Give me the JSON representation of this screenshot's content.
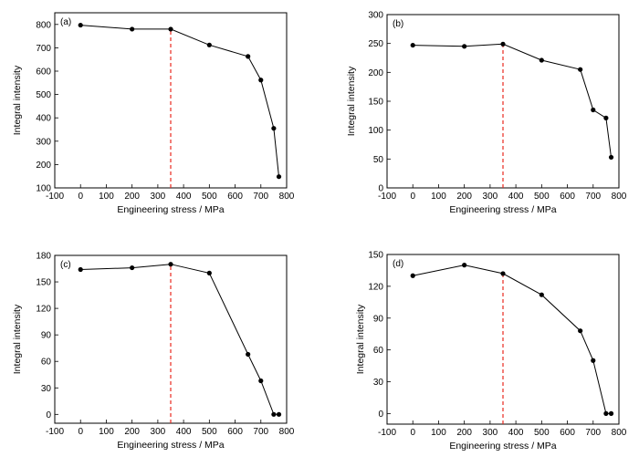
{
  "chart_data": [
    {
      "type": "line",
      "panel_label": "(a)",
      "xlabel": "Engineering stress / MPa",
      "ylabel": "Integral intensity",
      "xlim": [
        -100,
        800
      ],
      "ylim": [
        100,
        850
      ],
      "xticks": [
        -100,
        0,
        100,
        200,
        300,
        400,
        500,
        600,
        700,
        800
      ],
      "yticks": [
        100,
        200,
        300,
        400,
        500,
        600,
        700,
        800
      ],
      "x": [
        0,
        200,
        350,
        500,
        650,
        700,
        750,
        770
      ],
      "y": [
        797,
        780,
        780,
        712,
        663,
        562,
        355,
        148
      ],
      "reference_x": 350,
      "grid": false
    },
    {
      "type": "line",
      "panel_label": "(b)",
      "xlabel": "Engineering stress / MPa",
      "ylabel": "Integral intensity",
      "xlim": [
        -100,
        800
      ],
      "ylim": [
        0,
        300
      ],
      "xticks": [
        -100,
        0,
        100,
        200,
        300,
        400,
        500,
        600,
        700,
        800
      ],
      "yticks": [
        0,
        50,
        100,
        150,
        200,
        250,
        300
      ],
      "x": [
        0,
        200,
        350,
        500,
        650,
        700,
        750,
        770
      ],
      "y": [
        247,
        245,
        249,
        221,
        205,
        135,
        121,
        53
      ],
      "reference_x": 350,
      "grid": false
    },
    {
      "type": "line",
      "panel_label": "(c)",
      "xlabel": "Engineering stress / MPa",
      "ylabel": "Integral intensity",
      "xlim": [
        -100,
        800
      ],
      "ylim": [
        -10,
        180
      ],
      "xticks": [
        -100,
        0,
        100,
        200,
        300,
        400,
        500,
        600,
        700,
        800
      ],
      "yticks": [
        0,
        30,
        60,
        90,
        120,
        150,
        180
      ],
      "x": [
        0,
        200,
        350,
        500,
        650,
        700,
        750,
        770
      ],
      "y": [
        164,
        166,
        170,
        160,
        68,
        38,
        0,
        0
      ],
      "reference_x": 350,
      "grid": false
    },
    {
      "type": "line",
      "panel_label": "(d)",
      "xlabel": "Engineering stress / MPa",
      "ylabel": "Integral intensity",
      "xlim": [
        -100,
        800
      ],
      "ylim": [
        -10,
        150
      ],
      "xticks": [
        -100,
        0,
        100,
        200,
        300,
        400,
        500,
        600,
        700,
        800
      ],
      "yticks": [
        0,
        30,
        60,
        90,
        120,
        150
      ],
      "x": [
        0,
        200,
        350,
        500,
        650,
        700,
        750,
        770
      ],
      "y": [
        130,
        140,
        132,
        112,
        78,
        50,
        0,
        0
      ],
      "reference_x": 350,
      "grid": false
    }
  ],
  "colors": {
    "line": "#000000",
    "marker": "#000000",
    "reference_line": "#e8281e"
  }
}
